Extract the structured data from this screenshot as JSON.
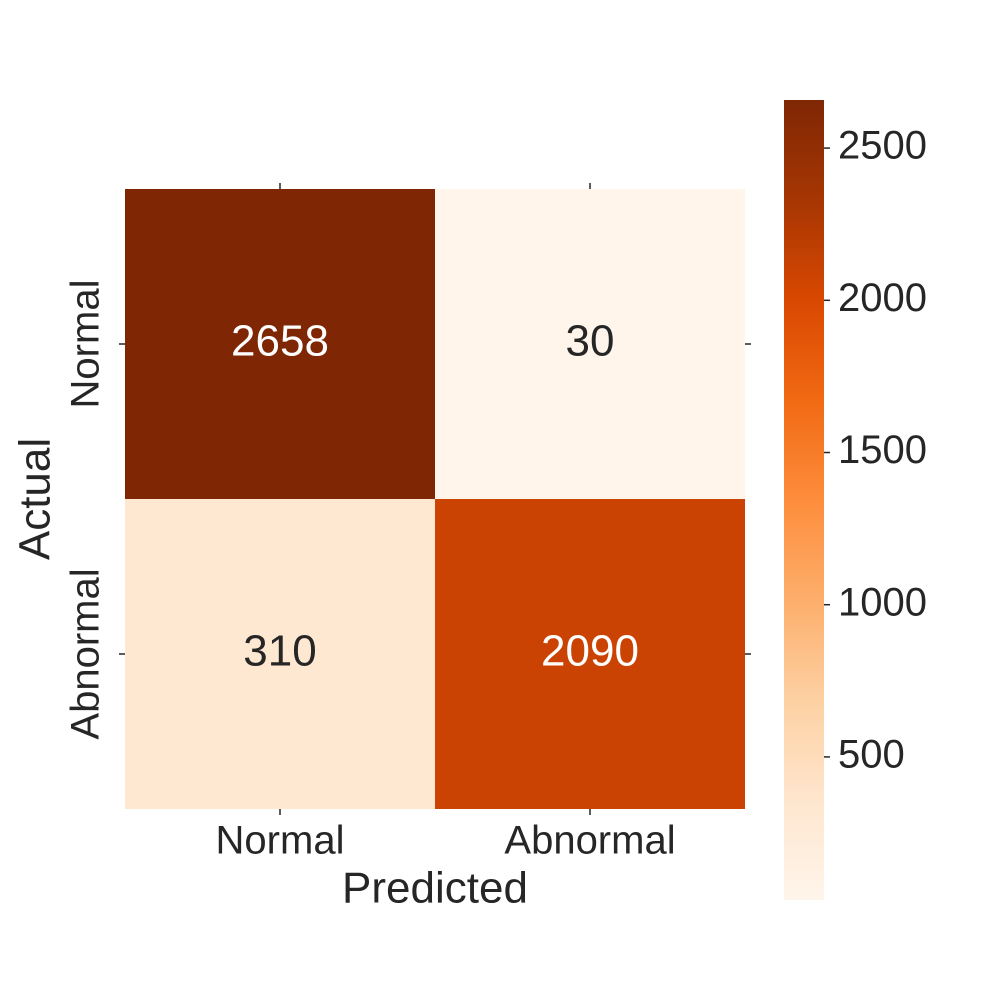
{
  "chart_data": {
    "type": "heatmap",
    "x": [
      "Normal",
      "Abnormal"
    ],
    "y": [
      "Normal",
      "Abnormal"
    ],
    "values": [
      [
        2658,
        30
      ],
      [
        310,
        2090
      ]
    ],
    "xlabel": "Predicted",
    "ylabel": "Actual",
    "colormap": "Oranges",
    "clim": [
      30,
      2658
    ],
    "cticks": [
      500,
      1000,
      1500,
      2000,
      2500
    ]
  }
}
